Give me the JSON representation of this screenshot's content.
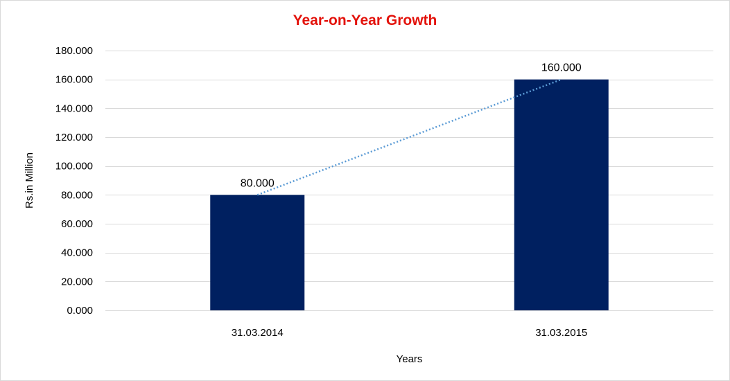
{
  "chart_data": {
    "type": "bar",
    "title": "Year-on-Year Growth",
    "xlabel": "Years",
    "ylabel": "Rs.in Million",
    "categories": [
      "31.03.2014",
      "31.03.2015"
    ],
    "values": [
      80,
      160
    ],
    "value_labels": [
      "80.000",
      "160.000"
    ],
    "ylim": [
      0,
      180
    ],
    "yticks": [
      0,
      20,
      40,
      60,
      80,
      100,
      120,
      140,
      160,
      180
    ],
    "ytick_labels": [
      "0.000",
      "20.000",
      "40.000",
      "60.000",
      "80.000",
      "100.000",
      "120.000",
      "140.000",
      "160.000",
      "180.000"
    ],
    "grid": true,
    "legend": "none",
    "trendline": "linear, dotted",
    "colors": {
      "bar": "#002060",
      "trendline": "#5b9bd5",
      "title": "#e3120b",
      "grid": "#d9d9d9"
    }
  }
}
